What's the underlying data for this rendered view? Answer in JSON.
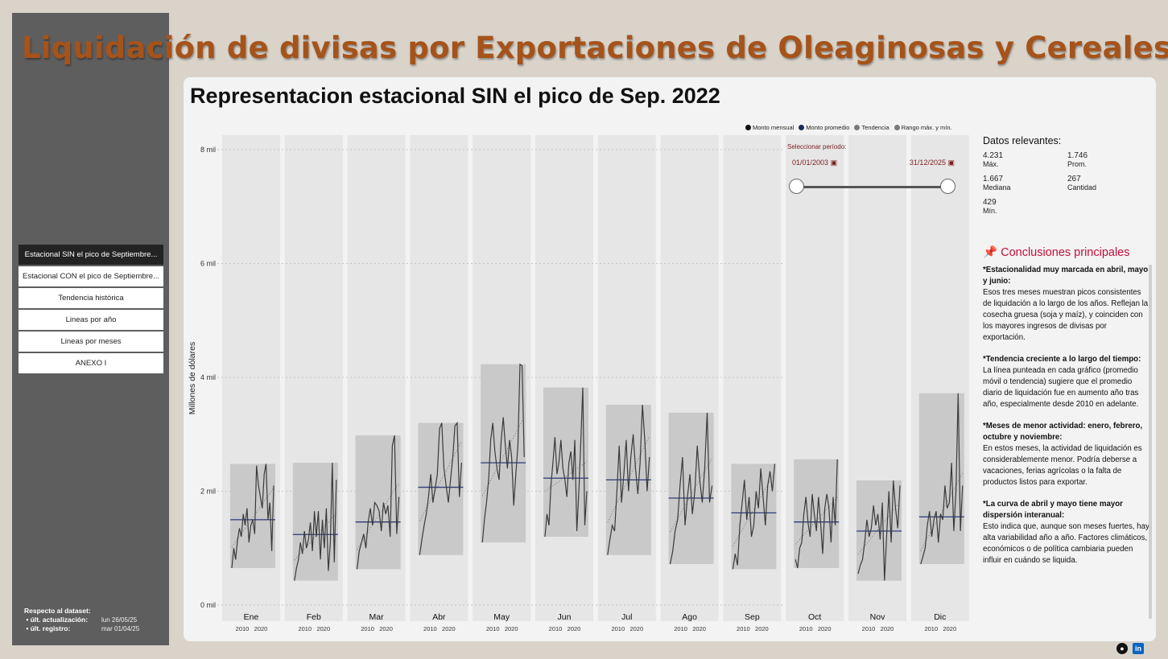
{
  "header": {
    "title": "Liquidación de divisas por Exportaciones de Oleaginosas y Cereales."
  },
  "sidebar": {
    "nav": [
      {
        "label": "Estacional SIN el pico de Septiembre...",
        "active": true
      },
      {
        "label": "Estacional CON el pico de Septiembre...",
        "active": false
      },
      {
        "label": "Tendencia histórica",
        "active": false
      },
      {
        "label": "Lineas por año",
        "active": false
      },
      {
        "label": "Lineas por meses",
        "active": false
      },
      {
        "label": "ANEXO I",
        "active": false
      }
    ],
    "dataset": {
      "heading": "Respecto al dataset:",
      "last_update_label": "últ. actualización:",
      "last_update_value": "lun 26/05/25",
      "last_record_label": "últ. registro:",
      "last_record_value": "mar 01/04/25"
    }
  },
  "chart": {
    "title": "Representacion estacional SIN el pico de Sep. 2022",
    "legend": [
      {
        "label": "Monto mensual",
        "color": "#111111"
      },
      {
        "label": "Monto promedio",
        "color": "#1b2a5e"
      },
      {
        "label": "Tendencia",
        "color": "#7a7a7a"
      },
      {
        "label": "Rango máx. y mín.",
        "color": "#7a7a7a"
      }
    ]
  },
  "chart_data": {
    "type": "line",
    "ylabel": "Millones de dólares",
    "ylim": [
      0,
      8000
    ],
    "yticks": [
      0,
      2000,
      4000,
      6000,
      8000
    ],
    "ytick_labels": [
      "0 mil",
      "2 mil",
      "4 mil",
      "6 mil",
      "8 mil"
    ],
    "xtick_labels": [
      "2010",
      "2020"
    ],
    "grid": true,
    "months": [
      {
        "name": "Ene",
        "avg": 1500,
        "min": 650,
        "max": 2480,
        "series": [
          650,
          1000,
          800,
          1150,
          1350,
          1200,
          1600,
          1400,
          1700,
          1100,
          1400,
          1500,
          1250,
          2450,
          2100,
          1900,
          1700,
          2300,
          2480,
          1500,
          1800,
          950,
          2100
        ]
      },
      {
        "name": "Feb",
        "avg": 1240,
        "min": 430,
        "max": 2500,
        "series": [
          430,
          650,
          800,
          1100,
          900,
          1300,
          1000,
          1150,
          1450,
          950,
          1650,
          1200,
          1650,
          800,
          1500,
          1000,
          1700,
          600,
          1100,
          2500,
          750,
          2200
        ]
      },
      {
        "name": "Mar",
        "avg": 1460,
        "min": 630,
        "max": 2980,
        "series": [
          630,
          950,
          1100,
          1250,
          1000,
          1450,
          1700,
          1400,
          1800,
          1750,
          1650,
          1300,
          1800,
          1600,
          1750,
          1200,
          2800,
          2980,
          1250,
          1900
        ]
      },
      {
        "name": "Abr",
        "avg": 2070,
        "min": 880,
        "max": 3200,
        "series": [
          880,
          1150,
          1400,
          1600,
          1900,
          2300,
          1800,
          2050,
          2300,
          3100,
          3200,
          2400,
          2100,
          1800,
          2200,
          2600,
          3150,
          3200,
          1900,
          2500
        ]
      },
      {
        "name": "May",
        "avg": 2500,
        "min": 1100,
        "max": 4231,
        "series": [
          1100,
          1500,
          1800,
          2200,
          2900,
          3200,
          2700,
          2400,
          2200,
          2900,
          3300,
          2800,
          2400,
          2900,
          2600,
          1750,
          2300,
          2800,
          4231,
          4200,
          2600
        ]
      },
      {
        "name": "Jun",
        "avg": 2230,
        "min": 1200,
        "max": 3820,
        "series": [
          1200,
          1600,
          1400,
          2100,
          2500,
          2950,
          2300,
          2500,
          2900,
          2400,
          2200,
          1900,
          2500,
          2700,
          2200,
          2900,
          1300,
          2000,
          2900,
          3820,
          1400,
          2000
        ]
      },
      {
        "name": "Jul",
        "avg": 2200,
        "min": 880,
        "max": 3520,
        "series": [
          880,
          1150,
          1400,
          1300,
          2000,
          2800,
          1800,
          2300,
          2900,
          2000,
          2600,
          3000,
          2400,
          1950,
          2500,
          3520,
          2900,
          2000,
          2600
        ]
      },
      {
        "name": "Ago",
        "avg": 1880,
        "min": 720,
        "max": 3380,
        "series": [
          720,
          950,
          1300,
          1500,
          2100,
          2600,
          1400,
          1900,
          2300,
          1600,
          2000,
          2800,
          2200,
          1800,
          2400,
          3380,
          1800,
          2100
        ]
      },
      {
        "name": "Sep",
        "avg": 1620,
        "min": 630,
        "max": 2480,
        "series": [
          630,
          900,
          700,
          1400,
          1800,
          2200,
          1500,
          1900,
          1200,
          1400,
          2000,
          1700,
          2400,
          1900,
          1400,
          2100,
          2350,
          2000,
          2480
        ]
      },
      {
        "name": "Oct",
        "avg": 1460,
        "min": 650,
        "max": 2560,
        "series": [
          800,
          650,
          1000,
          1100,
          1600,
          1900,
          1450,
          1200,
          1950,
          1600,
          1300,
          1900,
          1450,
          900,
          1700,
          1950,
          1700,
          1100,
          1900,
          1400,
          2560
        ]
      },
      {
        "name": "Nov",
        "avg": 1300,
        "min": 429,
        "max": 2190,
        "series": [
          550,
          700,
          800,
          1100,
          1500,
          1200,
          1350,
          1750,
          1400,
          1600,
          1150,
          1800,
          429,
          1250,
          2000,
          1100,
          2190,
          1700,
          1350,
          2100
        ]
      },
      {
        "name": "Dic",
        "avg": 1550,
        "min": 720,
        "max": 3720,
        "series": [
          720,
          850,
          1000,
          1400,
          1650,
          1200,
          1500,
          1650,
          1100,
          1600,
          1500,
          2100,
          1700,
          1800,
          2500,
          1300,
          2000,
          3720,
          1300,
          2100
        ]
      }
    ]
  },
  "slicer": {
    "label": "Seleccionar período:",
    "start": "01/01/2003",
    "end": "31/12/2025"
  },
  "stats": {
    "title": "Datos relevantes:",
    "items": [
      {
        "value": "4.231",
        "label": "Máx."
      },
      {
        "value": "1.746",
        "label": "Prom."
      },
      {
        "value": "1.667",
        "label": "Mediana"
      },
      {
        "value": "267",
        "label": "Cantidad"
      },
      {
        "value": "429",
        "label": "Mín."
      }
    ]
  },
  "conclusions": {
    "title": "Conclusiones principales",
    "items": [
      {
        "heading": "*Estacionalidad muy marcada en abril, mayo y junio:",
        "text": "Esos tres meses muestran picos consistentes de liquidación a lo largo de los años. Reflejan la cosecha gruesa (soja y maíz), y coinciden con los mayores ingresos de divisas por exportación."
      },
      {
        "heading": "*Tendencia creciente a lo largo del tiempo:",
        "text": "La línea punteada en cada gráfico (promedio móvil o tendencia) sugiere que el promedio diario de liquidación fue en aumento año tras año, especialmente desde 2010 en adelante."
      },
      {
        "heading": "*Meses de menor actividad: enero, febrero, octubre y noviembre:",
        "text": "En estos meses, la actividad de liquidación es considerablemente menor. Podría deberse a vacaciones, ferias agrícolas o la falta de productos listos para exportar."
      },
      {
        "heading": "*La curva de abril y mayo tiene mayor dispersión interanual:",
        "text": "Esto indica que, aunque son meses fuertes, hay alta variabilidad año a año. Factores climáticos, económicos o de política cambiaria pueden influir en cuándo se liquida."
      }
    ]
  },
  "social": [
    {
      "icon": "github-icon",
      "color": "#111111"
    },
    {
      "icon": "linkedin-icon",
      "color": "#0a66c2"
    }
  ]
}
